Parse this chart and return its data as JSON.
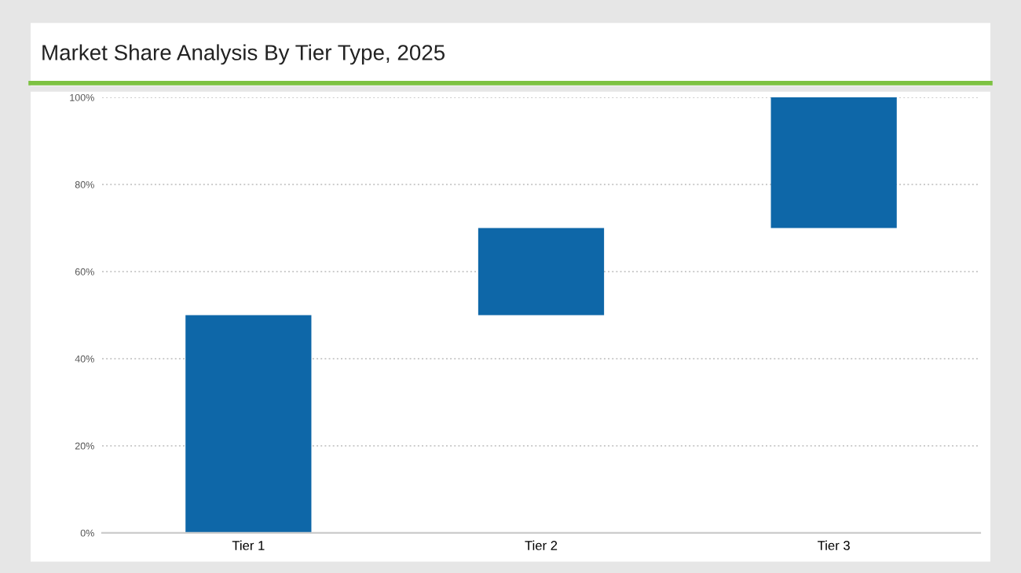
{
  "chart_data": {
    "type": "bar",
    "title": "Market Share Analysis By Tier Type, 2025",
    "categories": [
      "Tier 1",
      "Tier 2",
      "Tier 3"
    ],
    "values": [
      50,
      20,
      30
    ],
    "base": [
      0,
      50,
      70
    ],
    "color": "#0e67a8",
    "ylim": [
      0,
      100
    ],
    "yticks": [
      {
        "value": 0,
        "label": "0%"
      },
      {
        "value": 20,
        "label": "20%"
      },
      {
        "value": 40,
        "label": "40%"
      },
      {
        "value": 60,
        "label": "60%"
      },
      {
        "value": 80,
        "label": "80%"
      },
      {
        "value": 100,
        "label": "100%"
      }
    ],
    "grid": "y"
  }
}
